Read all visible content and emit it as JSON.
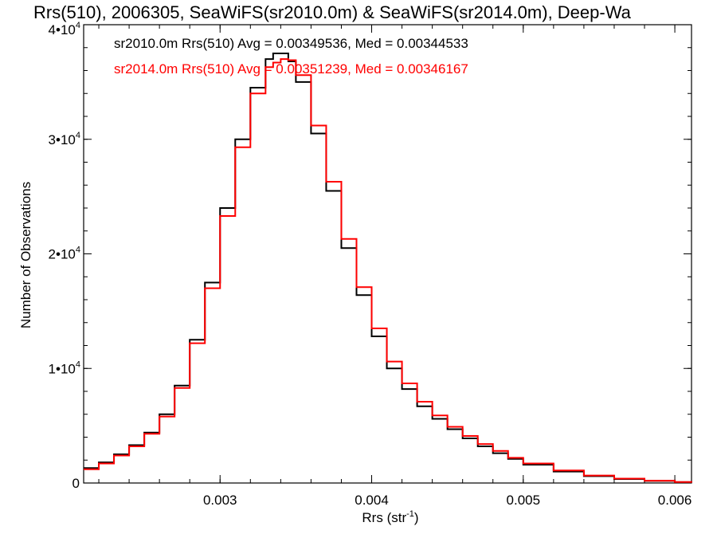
{
  "chart_data": {
    "type": "line",
    "title": "Rrs(510), 2006305, SeaWiFS(sr2010.0m) & SeaWiFS(sr2014.0m), Deep-Wa",
    "xlabel": "Rrs (str",
    "xlabel_sup": "-1",
    "xlabel_end": ")",
    "ylabel": "Number of Observations",
    "xlim": [
      0.0021,
      0.00611
    ],
    "ylim": [
      0,
      40000
    ],
    "xticks": [
      {
        "value": 0.003,
        "label": "0.003"
      },
      {
        "value": 0.004,
        "label": "0.004"
      },
      {
        "value": 0.005,
        "label": "0.005"
      },
      {
        "value": 0.006,
        "label": "0.006"
      }
    ],
    "yticks": [
      {
        "value": 0,
        "label": "0",
        "sup": ""
      },
      {
        "value": 10000,
        "label": "1•10",
        "sup": "4"
      },
      {
        "value": 20000,
        "label": "2•10",
        "sup": "4"
      },
      {
        "value": 30000,
        "label": "3•10",
        "sup": "4"
      },
      {
        "value": 40000,
        "label": "4•10",
        "sup": "4"
      }
    ],
    "grid": false,
    "legend_position": "top-left",
    "series": [
      {
        "name": "sr2010.0m Rrs(510) Avg = 0.00349536, Med = 0.00344533",
        "color": "#000000",
        "x": [
          0.0021,
          0.0022,
          0.0023,
          0.0024,
          0.0025,
          0.0026,
          0.0027,
          0.0028,
          0.0029,
          0.003,
          0.0031,
          0.0032,
          0.0033,
          0.00335,
          0.0034,
          0.00345,
          0.0035,
          0.0036,
          0.0037,
          0.0038,
          0.0039,
          0.004,
          0.0041,
          0.0042,
          0.0043,
          0.0044,
          0.0045,
          0.0046,
          0.0047,
          0.0048,
          0.0049,
          0.005,
          0.0052,
          0.0054,
          0.0056,
          0.0058,
          0.006,
          0.00611
        ],
        "y": [
          1300,
          1800,
          2500,
          3300,
          4400,
          6000,
          8500,
          12500,
          17500,
          24000,
          30000,
          34500,
          37000,
          37500,
          37500,
          36800,
          35000,
          30500,
          25500,
          20500,
          16400,
          12800,
          10000,
          8200,
          6700,
          5600,
          4700,
          3900,
          3200,
          2600,
          2100,
          1600,
          1000,
          600,
          350,
          180,
          80,
          40
        ]
      },
      {
        "name": "sr2014.0m Rrs(510) Avg = 0.00351239, Med = 0.00346167",
        "color": "#ff0000",
        "x": [
          0.0021,
          0.0022,
          0.0023,
          0.0024,
          0.0025,
          0.0026,
          0.0027,
          0.0028,
          0.0029,
          0.003,
          0.0031,
          0.0032,
          0.0033,
          0.00335,
          0.0034,
          0.00345,
          0.0035,
          0.0036,
          0.0037,
          0.0038,
          0.0039,
          0.004,
          0.0041,
          0.0042,
          0.0043,
          0.0044,
          0.0045,
          0.0046,
          0.0047,
          0.0048,
          0.0049,
          0.005,
          0.0052,
          0.0054,
          0.0056,
          0.0058,
          0.006,
          0.00611
        ],
        "y": [
          1200,
          1700,
          2400,
          3200,
          4300,
          5800,
          8300,
          12200,
          17000,
          23300,
          29300,
          34000,
          36300,
          36700,
          37000,
          36900,
          35600,
          31200,
          26300,
          21300,
          17100,
          13500,
          10600,
          8700,
          7100,
          5900,
          4900,
          4100,
          3400,
          2800,
          2200,
          1700,
          1100,
          650,
          380,
          200,
          90,
          45
        ]
      }
    ]
  }
}
